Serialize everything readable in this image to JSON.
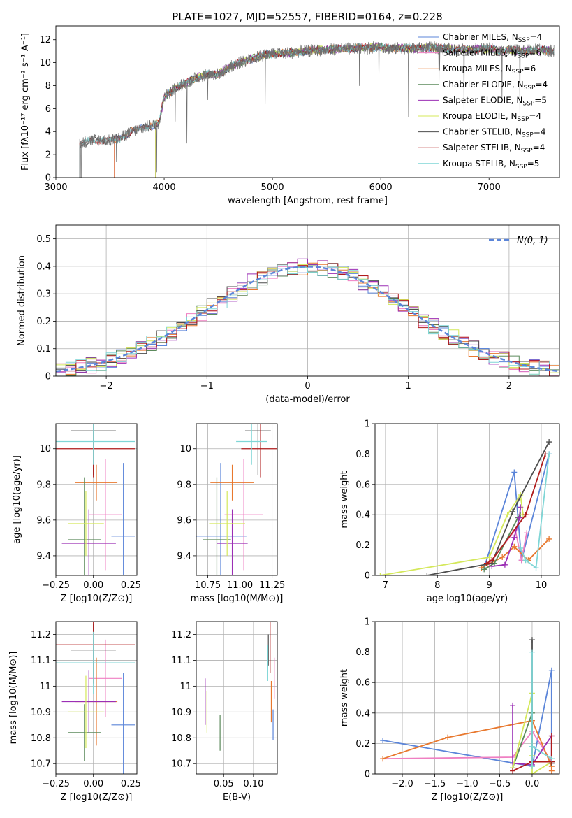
{
  "figure_title": "PLATE=1027, MJD=52557, FIBERID=0164, z=0.228",
  "colors": {
    "Chabrier MILES": "#5b85d9",
    "Salpeter MILES": "#ef7fc2",
    "Kroupa MILES": "#e8782e",
    "Chabrier ELODIE": "#5c8a5c",
    "Salpeter ELODIE": "#9b2fb5",
    "Kroupa ELODIE": "#d4e85a",
    "Chabrier STELIB": "#4d4d4d",
    "Salpeter STELIB": "#b01c1c",
    "Kroupa STELIB": "#7fd6d6",
    "gauss": "#5b85d9"
  },
  "chart_data": [
    {
      "id": "spectrum",
      "type": "line",
      "xlabel": "wavelength [Angstrom, rest frame]",
      "ylabel": "Flux [fλ10⁻¹⁷ erg cm⁻² s⁻¹ A⁻¹]",
      "xlim": [
        3000,
        7650
      ],
      "ylim": [
        0,
        13.2
      ],
      "xticks": [
        3000,
        4000,
        5000,
        6000,
        7000
      ],
      "yticks": [
        0,
        2,
        4,
        6,
        8,
        10,
        12
      ],
      "legend_position": "top-right",
      "legend": [
        {
          "name": "Chabrier MILES",
          "suffix": "=4"
        },
        {
          "name": "Salpeter MILES",
          "suffix": "=6"
        },
        {
          "name": "Kroupa MILES",
          "suffix": "=6"
        },
        {
          "name": "Chabrier ELODIE",
          "suffix": "=4"
        },
        {
          "name": "Salpeter ELODIE",
          "suffix": "=5"
        },
        {
          "name": "Kroupa ELODIE",
          "suffix": "=4"
        },
        {
          "name": "Chabrier STELIB",
          "suffix": "=4"
        },
        {
          "name": "Salpeter STELIB",
          "suffix": "=4"
        },
        {
          "name": "Kroupa STELIB",
          "suffix": "=5"
        }
      ],
      "legend_subscript": "SSP",
      "data_envelope": {
        "x": [
          3220,
          3300,
          3400,
          3500,
          3600,
          3700,
          3800,
          3900,
          3950,
          4000,
          4100,
          4200,
          4300,
          4400,
          4500,
          4600,
          4700,
          4800,
          4900,
          5000,
          5100,
          5200,
          5300,
          5400,
          5500,
          5600,
          5700,
          5800,
          5900,
          6000,
          6100,
          6200,
          6300,
          6400,
          6500,
          6600,
          6700,
          6800,
          6900,
          7000,
          7100,
          7200,
          7300,
          7400,
          7500,
          7600
        ],
        "y": [
          2.9,
          3.2,
          3.3,
          3.2,
          3.5,
          4.0,
          4.3,
          4.6,
          4.7,
          7.0,
          7.8,
          8.2,
          8.7,
          9.0,
          9.0,
          9.6,
          10.0,
          10.3,
          10.6,
          10.8,
          10.8,
          10.9,
          11.0,
          11.1,
          11.1,
          11.2,
          11.2,
          11.3,
          11.3,
          11.4,
          11.2,
          11.3,
          11.2,
          11.3,
          11.3,
          11.2,
          11.2,
          11.1,
          11.2,
          11.2,
          11.0,
          11.1,
          11.0,
          11.1,
          11.1,
          11.0
        ]
      },
      "model_starts": {
        "Chabrier MILES": 3540,
        "Salpeter MILES": 3540,
        "Kroupa MILES": 3540,
        "Chabrier ELODIE": 3920,
        "Salpeter ELODIE": 3920,
        "Kroupa ELODIE": 3920,
        "Chabrier STELIB": 3220,
        "Salpeter STELIB": 3220,
        "Kroupa STELIB": 3220
      }
    },
    {
      "id": "residuals",
      "type": "histogram",
      "xlabel": "(data-model)/error",
      "ylabel": "Normed distribution",
      "xlim": [
        -2.5,
        2.5
      ],
      "ylim": [
        0,
        0.55
      ],
      "xticks": [
        -2,
        -1,
        0,
        1,
        2
      ],
      "xtick_labels": [
        "−2",
        "−1",
        "0",
        "1",
        "2"
      ],
      "yticks": [
        0,
        0.1,
        0.2,
        0.3,
        0.4,
        0.5
      ],
      "legend_position": "top-right",
      "gaussian_label": "N(0, 1)",
      "bins": [
        -2.5,
        2.5
      ],
      "bin_width": 0.1
    },
    {
      "id": "z-age",
      "type": "scatter",
      "xlabel": "Z [log10(Z/Z⊙)]",
      "ylabel": "age [log10(age/yr)]",
      "xlim": [
        -0.25,
        0.29
      ],
      "ylim": [
        9.29,
        10.14
      ],
      "xticks": [
        -0.25,
        0.0,
        0.25
      ],
      "xtick_labels": [
        "−0.25",
        "0.00",
        "0.25"
      ],
      "yticks": [
        9.4,
        9.6,
        9.8,
        10.0
      ]
    },
    {
      "id": "mass-age",
      "type": "scatter",
      "xlabel": "mass [log10(M/M⊙)]",
      "xlim": [
        10.66,
        11.29
      ],
      "ylim": [
        9.29,
        10.14
      ],
      "xticks": [
        10.75,
        11.0,
        11.25
      ],
      "xtick_labels": [
        "10.75",
        "11.00",
        "11.25"
      ],
      "yticks": [
        9.4,
        9.6,
        9.8,
        10.0
      ]
    },
    {
      "id": "age-massweight",
      "type": "line",
      "xlabel": "age log10(age/yr)",
      "ylabel": "mass weight",
      "xlim": [
        6.8,
        10.35
      ],
      "ylim": [
        0,
        1.0
      ],
      "xticks": [
        7,
        8,
        9,
        10
      ],
      "yticks": [
        0,
        0.2,
        0.4,
        0.6,
        0.8,
        1.0
      ]
    },
    {
      "id": "z-mass",
      "type": "scatter",
      "xlabel": "Z [log10(Z/Z⊙)]",
      "ylabel": "mass [log10(M/M⊙)]",
      "xlim": [
        -0.25,
        0.29
      ],
      "ylim": [
        10.66,
        11.25
      ],
      "xticks": [
        -0.25,
        0.0,
        0.25
      ],
      "xtick_labels": [
        "−0.25",
        "0.00",
        "0.25"
      ],
      "yticks": [
        10.7,
        10.8,
        10.9,
        11.0,
        11.1,
        11.2
      ]
    },
    {
      "id": "ebv-mass",
      "type": "scatter",
      "xlabel": "E(B-V)",
      "xlim": [
        0.004,
        0.14
      ],
      "ylim": [
        10.66,
        11.25
      ],
      "xticks": [
        0.05,
        0.1
      ],
      "xtick_labels": [
        "0.05",
        "0.10"
      ],
      "yticks": [
        10.7,
        10.8,
        10.9,
        11.0,
        11.1,
        11.2
      ]
    },
    {
      "id": "z-massweight",
      "type": "line",
      "xlabel": "Z [log10(Z/Z⊙)]",
      "ylabel": "mass weight",
      "xlim": [
        -2.42,
        0.42
      ],
      "ylim": [
        0,
        1.0
      ],
      "xticks": [
        -2.0,
        -1.5,
        -1.0,
        -0.5,
        0.0
      ],
      "xtick_labels": [
        "−2.0",
        "−1.5",
        "−1.0",
        "−0.5",
        "0.0"
      ],
      "yticks": [
        0,
        0.2,
        0.4,
        0.6,
        0.8,
        1.0
      ]
    }
  ],
  "fits": [
    {
      "name": "Chabrier MILES",
      "z": 0.2,
      "zerr": 0.08,
      "age": 9.51,
      "ageerr": 0.41,
      "mass": 10.85,
      "masserr": 0.2,
      "ebv": 0.133,
      "ebverr": 0.06
    },
    {
      "name": "Salpeter MILES",
      "z": 0.08,
      "zerr": 0.11,
      "age": 9.63,
      "ageerr": 0.31,
      "mass": 11.03,
      "masserr": 0.15,
      "ebv": 0.135,
      "ebverr": 0.08
    },
    {
      "name": "Kroupa MILES",
      "z": 0.02,
      "zerr": 0.14,
      "age": 9.81,
      "ageerr": 0.1,
      "mass": 10.94,
      "masserr": 0.17,
      "ebv": 0.13,
      "ebverr": 0.08
    },
    {
      "name": "Chabrier ELODIE",
      "z": -0.06,
      "zerr": 0.11,
      "age": 9.49,
      "ageerr": 0.35,
      "mass": 10.82,
      "masserr": 0.11,
      "ebv": 0.044,
      "ebverr": 0.07
    },
    {
      "name": "Salpeter ELODIE",
      "z": -0.03,
      "zerr": 0.18,
      "age": 9.47,
      "ageerr": 0.19,
      "mass": 10.94,
      "masserr": 0.12,
      "ebv": 0.019,
      "ebverr": 0.09
    },
    {
      "name": "Kroupa ELODIE",
      "z": -0.05,
      "zerr": 0.12,
      "age": 9.58,
      "ageerr": 0.18,
      "mass": 10.9,
      "masserr": 0.14,
      "ebv": 0.022,
      "ebverr": 0.08
    },
    {
      "name": "Chabrier STELIB",
      "z": 0.0,
      "zerr": 0.15,
      "age": 10.1,
      "ageerr": 0.25,
      "mass": 11.14,
      "masserr": 0.1,
      "ebv": 0.125,
      "ebverr": 0.06
    },
    {
      "name": "Salpeter STELIB",
      "z": 0.0,
      "zerr": 0.28,
      "age": 10.0,
      "ageerr": 0.16,
      "mass": 11.16,
      "masserr": 0.15,
      "ebv": 0.128,
      "ebverr": 0.11
    },
    {
      "name": "Kroupa STELIB",
      "z": 0.0,
      "zerr": 0.28,
      "age": 10.04,
      "ageerr": 0.13,
      "mass": 11.09,
      "masserr": 0.12,
      "ebv": 0.124,
      "ebverr": 0.07
    }
  ],
  "ssp_components": [
    {
      "name": "Chabrier MILES",
      "age": [
        8.9,
        9.48,
        9.62,
        10.15
      ],
      "weight": [
        0.05,
        0.68,
        0.1,
        0.8
      ],
      "zz": [
        -2.3,
        0.3,
        0.3,
        0.0
      ],
      "zweight": [
        0.22,
        0.68,
        0.1,
        0.05
      ]
    },
    {
      "name": "Salpeter MILES",
      "age": [
        9.0,
        9.5,
        9.62,
        9.72
      ],
      "weight": [
        0.08,
        0.3,
        0.1,
        0.28
      ],
      "zz": [
        -2.3,
        -0.3,
        0.0,
        0.3
      ],
      "zweight": [
        0.1,
        0.11,
        0.28,
        0.08
      ]
    },
    {
      "name": "Kroupa MILES",
      "age": [
        8.85,
        9.25,
        9.48,
        9.75,
        10.15
      ],
      "weight": [
        0.05,
        0.12,
        0.19,
        0.1,
        0.24
      ],
      "zz": [
        -2.3,
        -1.3,
        0.0,
        0.3,
        0.3
      ],
      "zweight": [
        0.1,
        0.24,
        0.35,
        0.05,
        0.02
      ]
    },
    {
      "name": "Chabrier ELODIE",
      "age": [
        8.9,
        9.1,
        9.55,
        9.6
      ],
      "weight": [
        0.04,
        0.08,
        0.38,
        0.4
      ],
      "zz": [
        -0.3,
        0.0,
        0.0,
        0.3
      ],
      "zweight": [
        0.04,
        0.4,
        0.08,
        0.08
      ]
    },
    {
      "name": "Salpeter ELODIE",
      "age": [
        9.05,
        9.3,
        9.48,
        9.58,
        9.6
      ],
      "weight": [
        0.06,
        0.07,
        0.25,
        0.38,
        0.45
      ],
      "zz": [
        -0.3,
        -0.3,
        0.0,
        0.3,
        0.3
      ],
      "zweight": [
        0.45,
        0.07,
        0.06,
        0.25,
        0.08
      ]
    },
    {
      "name": "Kroupa ELODIE",
      "age": [
        6.9,
        9.0,
        9.35,
        9.6,
        9.65
      ],
      "weight": [
        0.0,
        0.12,
        0.4,
        0.53,
        0.4
      ],
      "zz": [
        -0.3,
        0.0,
        0.0,
        0.3,
        0.0
      ],
      "zweight": [
        0.04,
        0.53,
        0.12,
        0.08,
        0.0
      ]
    },
    {
      "name": "Chabrier STELIB",
      "age": [
        7.8,
        9.05,
        9.45,
        10.15
      ],
      "weight": [
        0.0,
        0.08,
        0.42,
        0.88
      ],
      "zz": [
        0.0,
        0.0,
        0.3,
        0.3
      ],
      "zweight": [
        0.88,
        0.08,
        0.08,
        0.07
      ]
    },
    {
      "name": "Salpeter STELIB",
      "age": [
        8.95,
        9.05,
        9.7,
        10.08
      ],
      "weight": [
        0.08,
        0.1,
        0.4,
        0.8
      ],
      "zz": [
        -0.3,
        0.0,
        0.3,
        0.3
      ],
      "zweight": [
        0.02,
        0.08,
        0.08,
        0.25
      ]
    },
    {
      "name": "Kroupa STELIB",
      "age": [
        9.6,
        9.7,
        9.9,
        10.15
      ],
      "weight": [
        0.18,
        0.1,
        0.05,
        0.8
      ],
      "zz": [
        0.0,
        0.0,
        0.3,
        0.0
      ],
      "zweight": [
        0.8,
        0.05,
        0.1,
        0.18
      ]
    }
  ]
}
